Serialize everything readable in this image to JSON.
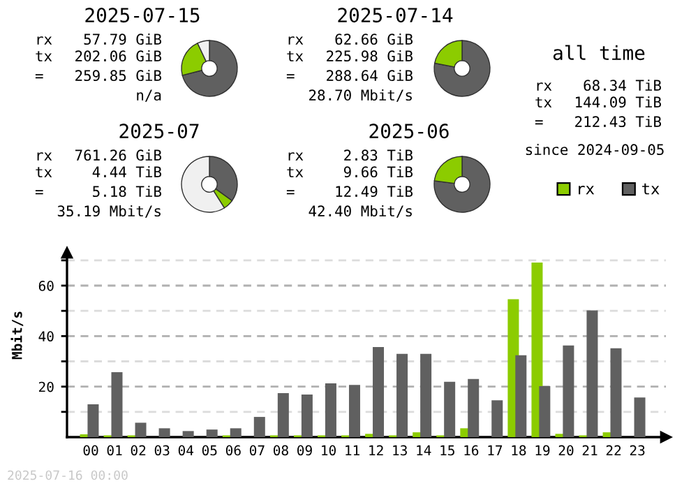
{
  "chart_data": [
    {
      "type": "donut",
      "title": "2025-07-15",
      "categories": [
        null,
        null,
        null
      ],
      "values": [
        71,
        22,
        7
      ],
      "colors": [
        "#606060",
        "#8ccc00",
        "#f0f0f0"
      ],
      "annotations": [
        "rx 57.79 GiB",
        "tx 202.06 GiB",
        "= 259.85 GiB",
        "n/a"
      ]
    },
    {
      "type": "donut",
      "title": "2025-07-14",
      "categories": [
        null,
        null
      ],
      "values": [
        78,
        22
      ],
      "colors": [
        "#606060",
        "#8ccc00"
      ],
      "annotations": [
        "rx 62.66 GiB",
        "tx 225.98 GiB",
        "= 288.64 GiB",
        "28.70 Mbit/s"
      ]
    },
    {
      "type": "other",
      "title": "all time",
      "annotations": [
        "rx 68.34 TiB",
        "tx 144.09 TiB",
        "= 212.43 TiB",
        "since 2024-09-05"
      ]
    },
    {
      "type": "donut",
      "title": "2025-07",
      "categories": [
        null,
        null,
        null
      ],
      "values": [
        35,
        6,
        59
      ],
      "colors": [
        "#606060",
        "#8ccc00",
        "#f0f0f0"
      ],
      "annotations": [
        "rx 761.26 GiB",
        "tx 4.44 TiB",
        "= 5.18 TiB",
        "35.19 Mbit/s"
      ]
    },
    {
      "type": "donut",
      "title": "2025-06",
      "categories": [
        null,
        null
      ],
      "values": [
        77,
        23
      ],
      "colors": [
        "#606060",
        "#8ccc00"
      ],
      "annotations": [
        "rx 2.83 TiB",
        "tx 9.66 TiB",
        "= 12.49 TiB",
        "42.40 Mbit/s"
      ]
    },
    {
      "type": "bar",
      "ylabel": "Mbit/s",
      "categories": [
        "00",
        "01",
        "02",
        "03",
        "04",
        "05",
        "06",
        "07",
        "08",
        "09",
        "10",
        "11",
        "12",
        "13",
        "14",
        "15",
        "16",
        "17",
        "18",
        "19",
        "20",
        "21",
        "22",
        "23"
      ],
      "series": [
        {
          "name": "rx",
          "color": "#8ccc00",
          "values": [
            1.1,
            0.7,
            0.7,
            0,
            0,
            0,
            0.7,
            0,
            0.7,
            0.7,
            0.7,
            0.7,
            1.3,
            0.7,
            1.9,
            0.7,
            3.5,
            0,
            54.6,
            69.1,
            1.3,
            0.7,
            1.9,
            0
          ]
        },
        {
          "name": "tx",
          "color": "#606060",
          "values": [
            13.0,
            25.7,
            5.7,
            3.5,
            2.4,
            3.0,
            3.5,
            8.0,
            17.4,
            16.9,
            21.3,
            20.7,
            35.7,
            33.0,
            33.0,
            21.9,
            23.0,
            14.6,
            32.4,
            20.2,
            36.3,
            50.2,
            35.2,
            15.7
          ]
        }
      ],
      "ylim": [
        0,
        73
      ],
      "yticks": [
        {
          "value": 10,
          "label": null
        },
        20,
        {
          "value": 30,
          "label": null
        },
        40,
        {
          "value": 50,
          "label": null
        },
        60,
        {
          "value": 70,
          "label": null
        }
      ],
      "grid": "y",
      "legend": "top right",
      "annotations": [
        "2025-07-16 00:00"
      ]
    }
  ]
}
